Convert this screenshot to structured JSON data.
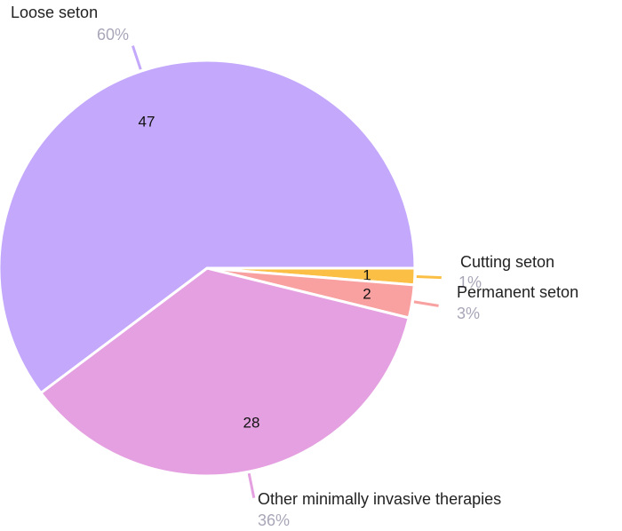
{
  "chart_data": {
    "type": "pie",
    "categories": [
      "Cutting seton",
      "Permanent seton",
      "Other minimally invasive therapies",
      "Loose seton"
    ],
    "values": [
      1,
      2,
      28,
      47
    ],
    "percent_labels": [
      "1%",
      "3%",
      "36%",
      "60%"
    ],
    "colors": [
      "#fbbf46",
      "#f9a0a0",
      "#e4a0e0",
      "#c4a8fc"
    ]
  }
}
